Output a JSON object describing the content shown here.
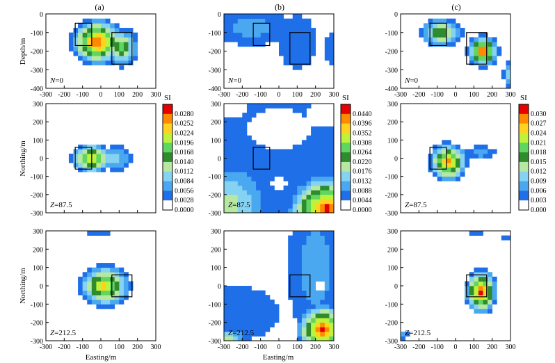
{
  "figure": {
    "column_labels": [
      "(a)",
      "(b)",
      "(c)"
    ],
    "x_label": "Easting/m",
    "depth_label": "Depth/m",
    "northing_label": "Northing/m",
    "colorbar_title": "SI"
  },
  "colorbars": [
    {
      "name": "colorbar-a",
      "ticks": [
        "0.0280",
        "0.0252",
        "0.0224",
        "0.0196",
        "0.0168",
        "0.0140",
        "0.0112",
        "0.0084",
        "0.0056",
        "0.0028",
        "0.0000"
      ]
    },
    {
      "name": "colorbar-b",
      "ticks": [
        "0.0440",
        "0.0396",
        "0.0352",
        "0.0308",
        "0.0264",
        "0.0220",
        "0.0176",
        "0.0132",
        "0.0088",
        "0.0044",
        "0.0000"
      ]
    },
    {
      "name": "colorbar-c",
      "ticks": [
        "0.030",
        "0.027",
        "0.024",
        "0.021",
        "0.018",
        "0.015",
        "0.012",
        "0.009",
        "0.006",
        "0.003",
        "0.000"
      ]
    }
  ],
  "colors": {
    "scale": [
      "#ffffff",
      "#1f6fe8",
      "#4aa8f0",
      "#85d2f2",
      "#b6e8a2",
      "#2e8c2e",
      "#5fd65f",
      "#bff23a",
      "#ffd21f",
      "#ff8a00",
      "#e60000"
    ]
  },
  "chart_data": [
    {
      "type": "heatmap",
      "panel": "a-depth",
      "annotation": "N=0",
      "x_ticks": [
        "-300",
        "-200",
        "-100",
        "0",
        "100",
        "200",
        "300"
      ],
      "y_ticks": [
        "0",
        "-100",
        "-200",
        "-300",
        "-400"
      ],
      "xlim": [
        -300,
        300
      ],
      "ylim": [
        -400,
        0
      ],
      "blobs": [
        {
          "cx": -20,
          "cy": -150,
          "rx": 150,
          "ry": 130,
          "peak": 10
        },
        {
          "cx": 110,
          "cy": -180,
          "rx": 100,
          "ry": 110,
          "peak": 6
        }
      ],
      "prisms": [
        [
          -140,
          -170,
          -50,
          -50
        ],
        [
          60,
          -270,
          170,
          -100
        ]
      ]
    },
    {
      "type": "heatmap",
      "panel": "b-depth",
      "annotation": "N=0",
      "x_ticks": [
        "-300",
        "-200",
        "-100",
        "0",
        "100",
        "200",
        "300"
      ],
      "y_ticks": [
        "0",
        "-100",
        "-200",
        "-300",
        "-400"
      ],
      "xlim": [
        -300,
        300
      ],
      "ylim": [
        -400,
        0
      ],
      "blobs": [
        {
          "cx": -150,
          "cy": -70,
          "rx": 200,
          "ry": 100,
          "peak": 2
        },
        {
          "cx": 100,
          "cy": -150,
          "rx": 110,
          "ry": 140,
          "peak": 1
        },
        {
          "cx": 280,
          "cy": -190,
          "rx": 25,
          "ry": 90,
          "peak": 1
        }
      ],
      "prisms": [
        [
          -140,
          -170,
          -50,
          -50
        ],
        [
          60,
          -270,
          170,
          -100
        ]
      ]
    },
    {
      "type": "heatmap",
      "panel": "c-depth",
      "annotation": "N=0",
      "x_ticks": [
        "-300",
        "-200",
        "-100",
        "0",
        "100",
        "200",
        "300"
      ],
      "y_ticks": [
        "0",
        "-100",
        "-200",
        "-300",
        "-400"
      ],
      "xlim": [
        -300,
        300
      ],
      "ylim": [
        -400,
        0
      ],
      "blobs": [
        {
          "cx": -80,
          "cy": -100,
          "rx": 120,
          "ry": 80,
          "peak": 6
        },
        {
          "cx": 150,
          "cy": -200,
          "rx": 90,
          "ry": 90,
          "peak": 10
        },
        {
          "cx": 285,
          "cy": -330,
          "rx": 25,
          "ry": 70,
          "peak": 3
        }
      ],
      "prisms": [
        [
          -140,
          -170,
          -50,
          -50
        ],
        [
          60,
          -270,
          170,
          -100
        ]
      ]
    },
    {
      "type": "heatmap",
      "panel": "a-z87.5",
      "annotation": "Z=87.5",
      "x_ticks": [],
      "y_ticks": [
        "300",
        "200",
        "100",
        "0",
        "-100",
        "-200",
        "-300"
      ],
      "xlim": [
        -300,
        300
      ],
      "ylim": [
        -300,
        300
      ],
      "blobs": [
        {
          "cx": -50,
          "cy": 0,
          "rx": 120,
          "ry": 85,
          "peak": 8
        },
        {
          "cx": 80,
          "cy": 0,
          "rx": 90,
          "ry": 70,
          "peak": 3
        }
      ],
      "prisms": [
        [
          -140,
          -60,
          -50,
          60
        ]
      ]
    },
    {
      "type": "heatmap",
      "panel": "b-z87.5",
      "annotation": "Z=87.5",
      "x_ticks": [],
      "y_ticks": [
        "300",
        "200",
        "100",
        "0",
        "-100",
        "-200",
        "-300"
      ],
      "xlim": [
        -300,
        300
      ],
      "ylim": [
        -300,
        300
      ],
      "blobs": [
        {
          "cx": 0,
          "cy": 0,
          "rx": 600,
          "ry": 600,
          "peak": 1
        },
        {
          "cx": -280,
          "cy": -250,
          "rx": 250,
          "ry": 250,
          "peak": 4
        },
        {
          "cx": 260,
          "cy": -280,
          "rx": 220,
          "ry": 200,
          "peak": 10
        }
      ],
      "holes": [
        {
          "cx": 0,
          "cy": 160,
          "rx": 180,
          "ry": 110
        },
        {
          "cx": 240,
          "cy": 240,
          "rx": 90,
          "ry": 70
        },
        {
          "cx": -250,
          "cy": 270,
          "rx": 80,
          "ry": 50
        },
        {
          "cx": 0,
          "cy": -130,
          "rx": 40,
          "ry": 40
        }
      ],
      "prisms": [
        [
          -140,
          -60,
          -50,
          60
        ]
      ]
    },
    {
      "type": "heatmap",
      "panel": "c-z87.5",
      "annotation": "Z=87.5",
      "x_ticks": [],
      "y_ticks": [
        "300",
        "200",
        "100",
        "0",
        "-100",
        "-200",
        "-300"
      ],
      "xlim": [
        -300,
        300
      ],
      "ylim": [
        -300,
        300
      ],
      "blobs": [
        {
          "cx": -40,
          "cy": -20,
          "rx": 110,
          "ry": 110,
          "peak": 9
        },
        {
          "cx": 140,
          "cy": 30,
          "rx": 80,
          "ry": 40,
          "peak": 2
        }
      ],
      "prisms": [
        [
          -140,
          -60,
          -50,
          60
        ]
      ]
    },
    {
      "type": "heatmap",
      "panel": "a-z212.5",
      "annotation": "Z=212.5",
      "x_ticks": [
        "-300",
        "-200",
        "-100",
        "0",
        "100",
        "200",
        "300"
      ],
      "y_ticks": [
        "300",
        "200",
        "100",
        "0",
        "-100",
        "-200",
        "-300"
      ],
      "xlim": [
        -300,
        300
      ],
      "ylim": [
        -300,
        300
      ],
      "blobs": [
        {
          "cx": 20,
          "cy": 0,
          "rx": 150,
          "ry": 120,
          "peak": 8
        },
        {
          "cx": -20,
          "cy": 290,
          "rx": 60,
          "ry": 12,
          "peak": 1
        }
      ],
      "prisms": [
        [
          60,
          -60,
          170,
          60
        ]
      ]
    },
    {
      "type": "heatmap",
      "panel": "b-z212.5",
      "annotation": "Z=212.5",
      "x_ticks": [
        "-300",
        "-200",
        "-100",
        "0",
        "100",
        "200",
        "300"
      ],
      "y_ticks": [
        "300",
        "200",
        "100",
        "0",
        "-100",
        "-200",
        "-300"
      ],
      "xlim": [
        -300,
        300
      ],
      "ylim": [
        -300,
        300
      ],
      "blobs": [
        {
          "cx": -300,
          "cy": -150,
          "rx": 300,
          "ry": 160,
          "peak": 1
        },
        {
          "cx": 200,
          "cy": 100,
          "rx": 150,
          "ry": 420,
          "peak": 2
        },
        {
          "cx": 240,
          "cy": -240,
          "rx": 150,
          "ry": 150,
          "peak": 10
        },
        {
          "cx": -280,
          "cy": -290,
          "rx": 120,
          "ry": 60,
          "peak": 4
        }
      ],
      "holes": [
        {
          "cx": 230,
          "cy": 0,
          "rx": 30,
          "ry": 30
        }
      ],
      "prisms": [
        [
          60,
          -60,
          170,
          60
        ]
      ]
    },
    {
      "type": "heatmap",
      "panel": "c-z212.5",
      "annotation": "Z=212.5",
      "x_ticks": [
        "-300",
        "-200",
        "-100",
        "0",
        "100",
        "200",
        "300"
      ],
      "y_ticks": [
        "300",
        "200",
        "100",
        "0",
        "-100",
        "-200",
        "-300"
      ],
      "xlim": [
        -300,
        300
      ],
      "ylim": [
        -300,
        300
      ],
      "blobs": [
        {
          "cx": 140,
          "cy": -30,
          "rx": 90,
          "ry": 130,
          "peak": 10
        },
        {
          "cx": 110,
          "cy": 280,
          "rx": 40,
          "ry": 14,
          "peak": 1
        },
        {
          "cx": 270,
          "cy": 265,
          "rx": 25,
          "ry": 14,
          "peak": 1
        },
        {
          "cx": -280,
          "cy": -270,
          "rx": 25,
          "ry": 20,
          "peak": 2
        }
      ],
      "prisms": [
        [
          60,
          -60,
          170,
          60
        ]
      ]
    }
  ]
}
